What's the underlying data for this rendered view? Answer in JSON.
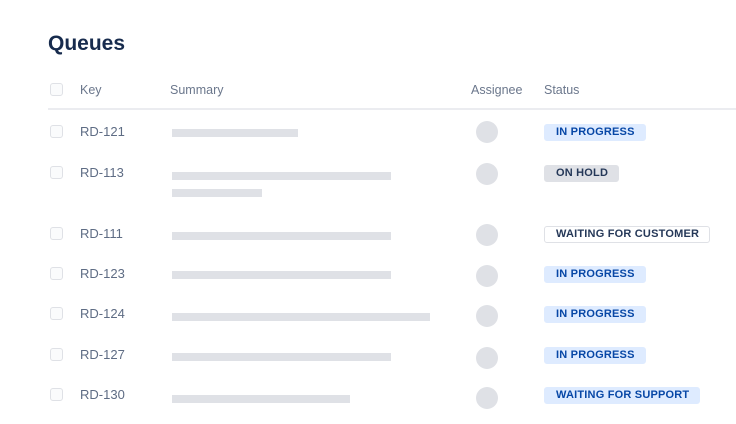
{
  "title": "Queues",
  "columns": {
    "key": "Key",
    "summary": "Summary",
    "assignee": "Assignee",
    "status": "Status"
  },
  "status_styles": {
    "IN PROGRESS": {
      "bg": "#deebff",
      "fg": "#0747a6",
      "border": "#deebff"
    },
    "ON HOLD": {
      "bg": "#dfe1e6",
      "fg": "#253858",
      "border": "#dfe1e6"
    },
    "WAITING FOR CUSTOMER": {
      "bg": "#ffffff",
      "fg": "#253858",
      "border": "#dfe1e6"
    },
    "WAITING FOR SUPPORT": {
      "bg": "#deebff",
      "fg": "#0747a6",
      "border": "#deebff"
    }
  },
  "rows": [
    {
      "key": "RD-121",
      "status": "IN PROGRESS",
      "summary_lines": [
        0.49
      ]
    },
    {
      "key": "RD-113",
      "status": "ON HOLD",
      "summary_lines": [
        0.85,
        0.35
      ]
    },
    {
      "key": "RD-111",
      "status": "WAITING FOR CUSTOMER",
      "summary_lines": [
        0.85
      ]
    },
    {
      "key": "RD-123",
      "status": "IN PROGRESS",
      "summary_lines": [
        0.85
      ]
    },
    {
      "key": "RD-124",
      "status": "IN PROGRESS",
      "summary_lines": [
        1.0
      ]
    },
    {
      "key": "RD-127",
      "status": "IN PROGRESS",
      "summary_lines": [
        0.85
      ]
    },
    {
      "key": "RD-130",
      "status": "WAITING FOR SUPPORT",
      "summary_lines": [
        0.69
      ]
    }
  ]
}
